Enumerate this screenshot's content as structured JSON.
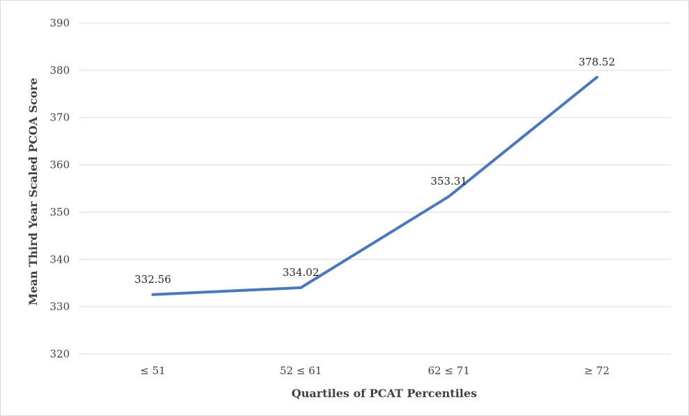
{
  "chart_data": {
    "type": "line",
    "title": "",
    "xlabel": "Quartiles of PCAT Percentiles",
    "ylabel": "Mean Third Year  Scaled PCOA Score",
    "categories": [
      "≤ 51",
      "52 ≤ 61",
      "62 ≤ 71",
      "≥ 72"
    ],
    "series": [
      {
        "values": [
          332.56,
          334.02,
          353.31,
          378.52
        ],
        "color": "#4a78b8"
      }
    ],
    "data_labels": [
      "332.56",
      "334.02",
      "353.31",
      "378.52"
    ],
    "ylim": [
      320,
      390
    ],
    "yticks": [
      320,
      330,
      340,
      350,
      360,
      370,
      380,
      390
    ],
    "grid": true,
    "legend": "none"
  }
}
